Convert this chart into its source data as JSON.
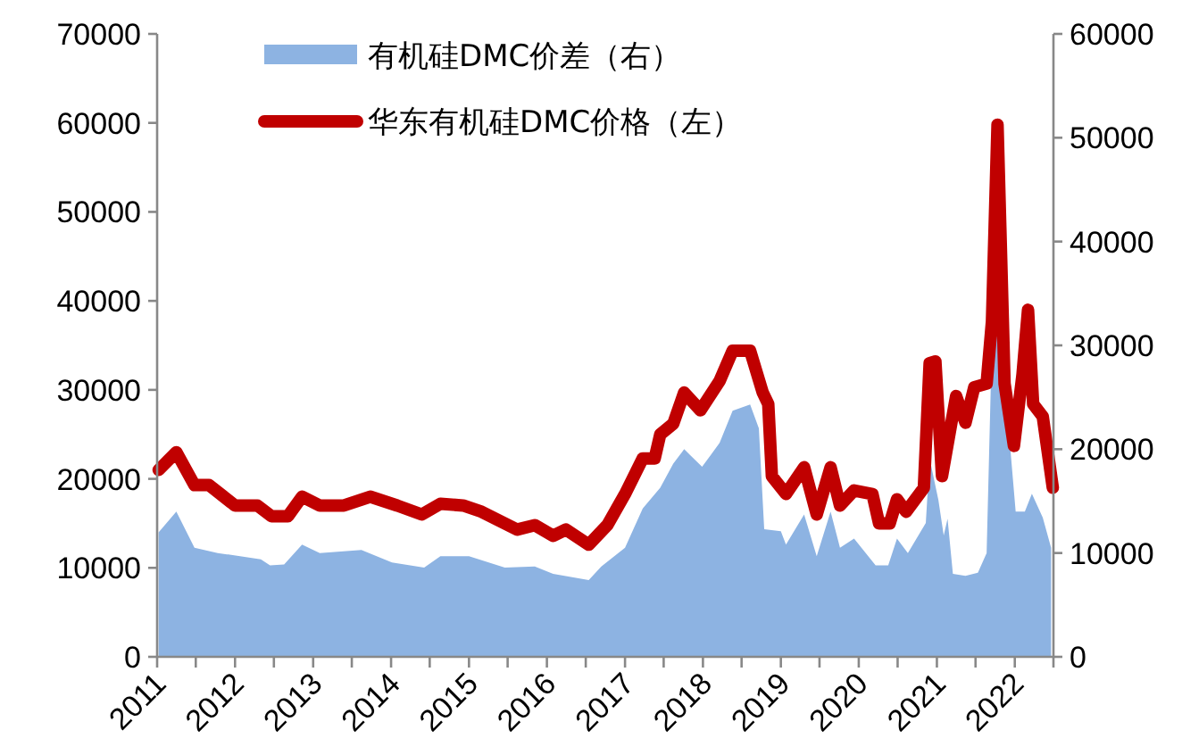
{
  "chart_data": {
    "type": "line",
    "series": [
      {
        "name": "有机硅DMC价差（右）",
        "type": "area",
        "axis": "y2",
        "color": "#8db3e2",
        "x": [
          "2011-01-08",
          "2011-04-01",
          "2011-06-25",
          "2011-10-12",
          "2012-05-01",
          "2012-06-13",
          "2012-08-18",
          "2012-11-10",
          "2013-02-01",
          "2013-08-15",
          "2014-01-05",
          "2014-06-05",
          "2014-08-20",
          "2015-01-01",
          "2015-06-18",
          "2015-11-05",
          "2016-01-30",
          "2016-07-15",
          "2016-09-12",
          "2017-01-01",
          "2017-03-25",
          "2017-06-15",
          "2017-08-15",
          "2017-10-05",
          "2017-12-28",
          "2018-03-20",
          "2018-05-20",
          "2018-08-10",
          "2018-09-20",
          "2018-10-15",
          "2019-01-01",
          "2019-01-25",
          "2019-04-20",
          "2019-06-18",
          "2019-08-22",
          "2019-10-05",
          "2019-12-10",
          "2020-03-20",
          "2020-05-18",
          "2020-06-28",
          "2020-08-18",
          "2020-11-10",
          "2020-11-28",
          "2021-01-08",
          "2021-02-02",
          "2021-02-20",
          "2021-03-17",
          "2021-05-15",
          "2021-07-12",
          "2021-08-22",
          "2021-09-16",
          "2021-10-12",
          "2021-11-14",
          "2022-01-05",
          "2022-02-17",
          "2022-03-22",
          "2022-05-12",
          "2022-06-20"
        ],
        "values": [
          12000,
          14000,
          10500,
          10000,
          9400,
          8800,
          8900,
          10800,
          10000,
          10300,
          9100,
          8600,
          9700,
          9700,
          8600,
          8700,
          8000,
          7400,
          8700,
          10500,
          14300,
          16300,
          18600,
          20000,
          18300,
          20600,
          23700,
          24300,
          22000,
          12300,
          12100,
          10800,
          13700,
          9700,
          14000,
          10500,
          11400,
          8800,
          8800,
          11400,
          10000,
          12900,
          19100,
          15100,
          11700,
          13300,
          8000,
          7800,
          8100,
          10000,
          30600,
          32000,
          26600,
          14000,
          14000,
          15700,
          13400,
          10500
        ]
      },
      {
        "name": "华东有机硅DMC价格（左）",
        "color": "#c00000",
        "x": [
          "2011-01-08",
          "2011-04-01",
          "2011-06-25",
          "2011-09-01",
          "2012-01-01",
          "2012-04-15",
          "2012-06-20",
          "2012-09-05",
          "2012-11-10",
          "2013-02-01",
          "2013-05-25",
          "2013-09-25",
          "2014-01-30",
          "2014-05-25",
          "2014-08-20",
          "2014-12-05",
          "2015-03-01",
          "2015-08-15",
          "2015-11-05",
          "2016-01-30",
          "2016-03-30",
          "2016-07-15",
          "2016-10-10",
          "2017-01-01",
          "2017-03-25",
          "2017-05-20",
          "2017-06-15",
          "2017-08-15",
          "2017-10-05",
          "2017-12-20",
          "2018-03-20",
          "2018-05-20",
          "2018-08-10",
          "2018-10-08",
          "2018-11-03",
          "2018-11-20",
          "2019-01-25",
          "2019-04-20",
          "2019-06-18",
          "2019-08-22",
          "2019-10-05",
          "2019-12-10",
          "2020-03-05",
          "2020-04-05",
          "2020-05-25",
          "2020-06-28",
          "2020-08-10",
          "2020-11-01",
          "2020-11-28",
          "2020-12-25",
          "2021-01-25",
          "2021-04-01",
          "2021-05-15",
          "2021-06-25",
          "2021-08-22",
          "2021-09-16",
          "2021-10-12",
          "2021-11-14",
          "2021-12-28",
          "2022-02-06",
          "2022-03-04",
          "2022-03-28",
          "2022-05-12",
          "2022-06-28"
        ],
        "values": [
          21000,
          23000,
          19300,
          19300,
          17000,
          17000,
          15800,
          15800,
          18000,
          17000,
          17000,
          18000,
          17000,
          16000,
          17200,
          17000,
          16300,
          14300,
          14800,
          13600,
          14300,
          12600,
          14800,
          18300,
          22300,
          22300,
          25000,
          26200,
          29700,
          27700,
          31000,
          34400,
          34400,
          29700,
          28400,
          20300,
          18300,
          21300,
          16000,
          21300,
          17000,
          18700,
          18300,
          15000,
          15000,
          17700,
          16300,
          19000,
          33000,
          33200,
          20300,
          29300,
          26300,
          30300,
          30700,
          37700,
          59800,
          30700,
          23700,
          31700,
          39000,
          28400,
          27000,
          19000
        ]
      }
    ],
    "xlim": [
      "2011-01-01",
      "2022-07-01"
    ],
    "xticks": [
      {
        "value": "2011-01-01",
        "label": "2011"
      },
      {
        "value": "2011-07-01",
        "label": null
      },
      {
        "value": "2012-01-01",
        "label": "2012"
      },
      {
        "value": "2012-07-01",
        "label": null
      },
      {
        "value": "2013-01-01",
        "label": "2013"
      },
      {
        "value": "2013-07-01",
        "label": null
      },
      {
        "value": "2014-01-01",
        "label": "2014"
      },
      {
        "value": "2014-07-01",
        "label": null
      },
      {
        "value": "2015-01-01",
        "label": "2015"
      },
      {
        "value": "2015-07-01",
        "label": null
      },
      {
        "value": "2016-01-01",
        "label": "2016"
      },
      {
        "value": "2016-07-01",
        "label": null
      },
      {
        "value": "2017-01-01",
        "label": "2017"
      },
      {
        "value": "2017-07-01",
        "label": null
      },
      {
        "value": "2018-01-01",
        "label": "2018"
      },
      {
        "value": "2018-07-01",
        "label": null
      },
      {
        "value": "2019-01-01",
        "label": "2019"
      },
      {
        "value": "2019-07-01",
        "label": null
      },
      {
        "value": "2020-01-01",
        "label": "2020"
      },
      {
        "value": "2020-07-01",
        "label": null
      },
      {
        "value": "2021-01-01",
        "label": "2021"
      },
      {
        "value": "2021-07-01",
        "label": null
      },
      {
        "value": "2022-01-01",
        "label": "2022"
      },
      {
        "value": "2022-07-01",
        "label": null
      }
    ],
    "ylim": [
      0,
      70000
    ],
    "yticks": [
      0,
      10000,
      20000,
      30000,
      40000,
      50000,
      60000,
      70000
    ],
    "y2lim": [
      0,
      60000
    ],
    "y2ticks": [
      0,
      10000,
      20000,
      30000,
      40000,
      50000,
      60000
    ],
    "legend": "top",
    "grid": false,
    "marker": "none",
    "line_style": "solid"
  }
}
